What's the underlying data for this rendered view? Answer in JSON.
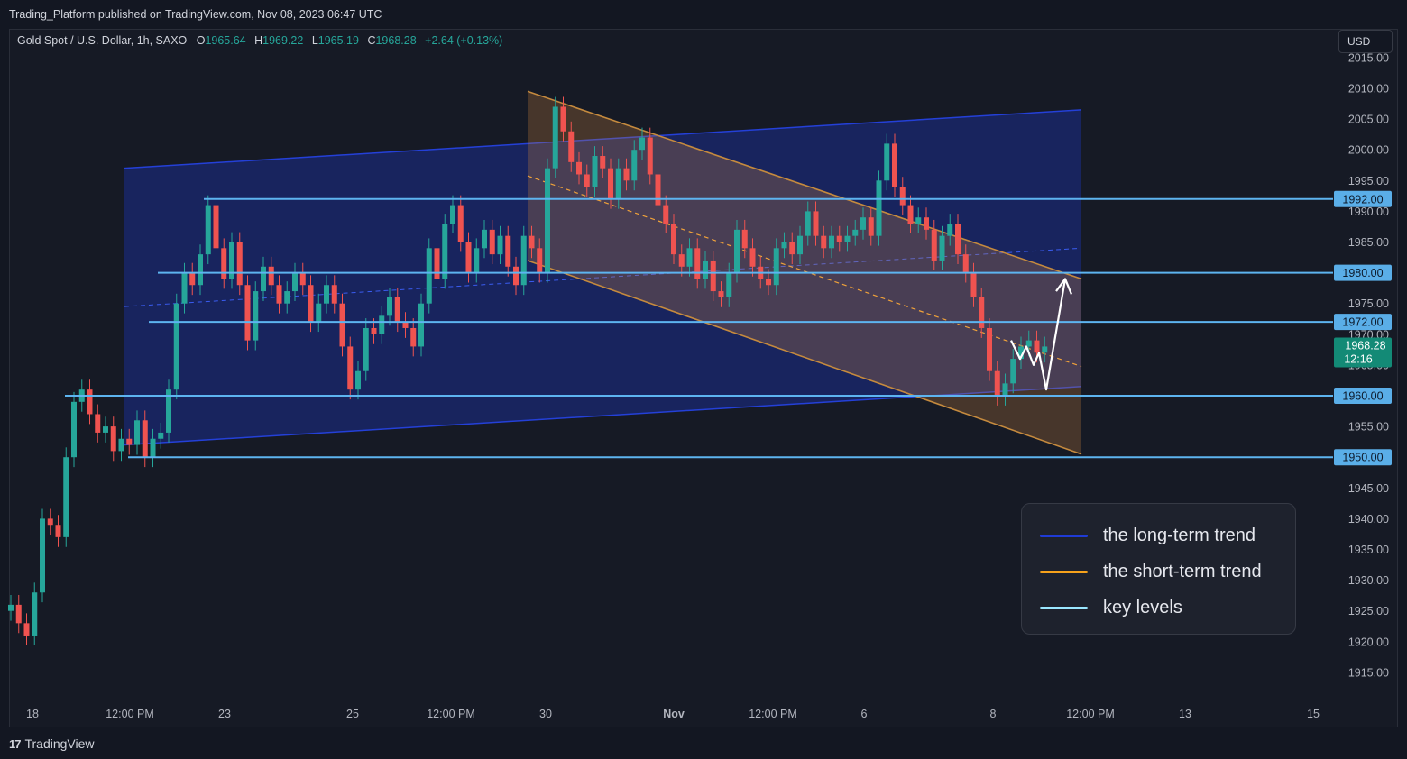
{
  "header": {
    "published": "Trading_Platform published on TradingView.com, Nov 08, 2023 06:47 UTC"
  },
  "legend": {
    "symbol": "Gold Spot / U.S. Dollar, 1h, SAXO",
    "o_label": "O",
    "o": "1965.64",
    "h_label": "H",
    "h": "1969.22",
    "l_label": "L",
    "l": "1965.19",
    "c_label": "C",
    "c": "1968.28",
    "change": "+2.64 (+0.13%)"
  },
  "currency_button": "USD",
  "key": {
    "items": [
      {
        "label": "the long-term trend",
        "color": "#1f3bd6"
      },
      {
        "label": "the short-term trend",
        "color": "#f7a21b"
      },
      {
        "label": "key levels",
        "color": "#9ae7ff"
      }
    ]
  },
  "footer": {
    "brand": "TradingView",
    "brand_mark": "17"
  },
  "colors": {
    "up": "#26a69a",
    "down": "#ef5350",
    "level": "#5db4f0",
    "long_trend": "#1f3bd6",
    "short_trend": "#c07a30"
  },
  "chart_data": {
    "type": "candlestick",
    "symbol": "Gold Spot / U.S. Dollar",
    "interval": "1h",
    "y_axis": {
      "min": 1910,
      "max": 2017,
      "ticks": [
        2015,
        2010,
        2005,
        2000,
        1995,
        1990,
        1985,
        1975,
        1970,
        1965,
        1955,
        1945,
        1940,
        1935,
        1930,
        1925,
        1920,
        1915
      ],
      "tick_format": "2dp"
    },
    "x_axis": {
      "labels": [
        "18",
        "12:00 PM",
        "23",
        "25",
        "12:00 PM",
        "30",
        "Nov",
        "12:00 PM",
        "6",
        "8",
        "12:00 PM",
        "13",
        "15"
      ]
    },
    "key_levels": [
      {
        "value": 1992.0,
        "label": "1992.00",
        "from_label": "23"
      },
      {
        "value": 1980.0,
        "label": "1980.00",
        "from_label": "12:00 PM"
      },
      {
        "value": 1972.0,
        "label": "1972.00",
        "from_label": "12:00 PM"
      },
      {
        "value": 1960.0,
        "label": "1960.00",
        "from_label": "18"
      },
      {
        "value": 1950.0,
        "label": "1950.00",
        "from_label": "12:00 PM"
      }
    ],
    "last_price": {
      "value": 1968.28,
      "label": "1968.28",
      "countdown": "12:16"
    },
    "long_term_channel": {
      "upper": [
        {
          "x": "12:00 PM (Oct 20)",
          "y": 1997
        },
        {
          "x": "12:00 PM (Nov 8)",
          "y": 2006.5
        }
      ],
      "lower": [
        {
          "x": "12:00 PM (Oct 20)",
          "y": 1952
        },
        {
          "x": "12:00 PM (Nov 8)",
          "y": 1961.5
        }
      ]
    },
    "short_term_channel": {
      "upper": [
        {
          "x": "29",
          "y": 2009.5
        },
        {
          "x": "12:00 PM (Nov 8)",
          "y": 1979
        }
      ],
      "lower": [
        {
          "x": "29",
          "y": 1982
        },
        {
          "x": "12:00 PM (Nov 8)",
          "y": 1950.5
        }
      ]
    },
    "series": [
      {
        "values": [
          1926,
          1923,
          1921,
          1928,
          1940,
          1939,
          1937,
          1950,
          1959,
          1961,
          1957,
          1954,
          1955,
          1951,
          1953,
          1952,
          1956,
          1950,
          1953,
          1954,
          1961,
          1975,
          1980,
          1978,
          1983,
          1991,
          1984,
          1979,
          1985,
          1978,
          1969,
          1977,
          1981,
          1978,
          1975,
          1977,
          1980,
          1978,
          1972,
          1975,
          1978,
          1975,
          1968,
          1961,
          1964,
          1971,
          1970,
          1973,
          1976,
          1972,
          1971,
          1968,
          1975,
          1984,
          1979,
          1988,
          1991,
          1985,
          1980,
          1984,
          1987,
          1983,
          1986,
          1981,
          1978,
          1986,
          1984,
          1980,
          1997,
          2007,
          2003,
          1998,
          1996,
          1994,
          1999,
          1997,
          1992,
          1997,
          1995,
          2000,
          2002,
          1996,
          1991,
          1988,
          1983,
          1981,
          1984,
          1979,
          1982,
          1977,
          1976,
          1980,
          1987,
          1984,
          1981,
          1979,
          1978,
          1984,
          1985,
          1983,
          1986,
          1990,
          1986,
          1984,
          1986,
          1985,
          1986,
          1987,
          1989,
          1986,
          1995,
          2001,
          1994,
          1991,
          1988,
          1989,
          1987,
          1982,
          1986,
          1988,
          1983,
          1980,
          1976,
          1971,
          1964,
          1960,
          1962,
          1966,
          1968,
          1969,
          1967,
          1968
        ]
      }
    ],
    "projection": [
      1969,
      1966,
      1968,
      1965,
      1967,
      1961,
      1979
    ]
  }
}
